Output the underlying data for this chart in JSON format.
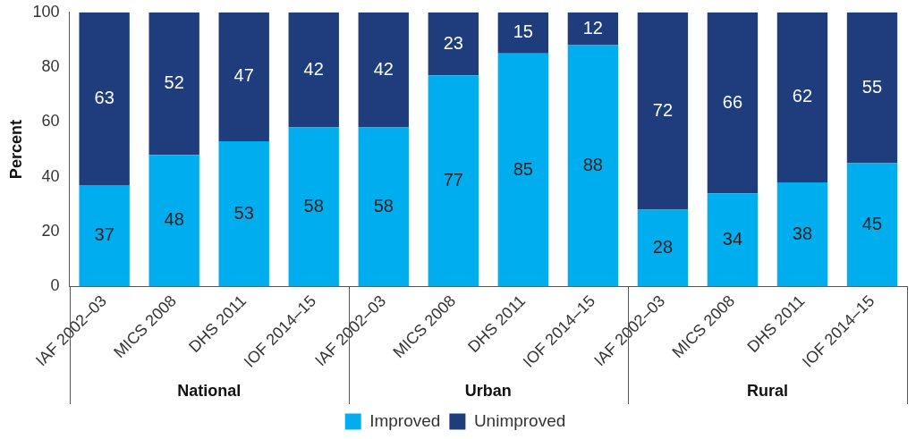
{
  "chart_data": {
    "type": "bar",
    "stacked": true,
    "ylabel": "Percent",
    "categories": [
      "IAF 2002–03",
      "MICS 2008",
      "DHS 2011",
      "IOF 2014–15",
      "IAF 2002–03",
      "MICS 2008",
      "DHS 2011",
      "IOF 2014–15",
      "IAF 2002–03",
      "MICS 2008",
      "DHS 2011",
      "IOF 2014–15"
    ],
    "series": [
      {
        "name": "Improved",
        "color": "#00aeef",
        "values": [
          37,
          48,
          53,
          58,
          58,
          77,
          85,
          88,
          28,
          34,
          38,
          45
        ]
      },
      {
        "name": "Unimproved",
        "color": "#1f3d7c",
        "values": [
          63,
          52,
          47,
          42,
          42,
          23,
          15,
          12,
          72,
          66,
          62,
          55
        ]
      }
    ],
    "ylim": [
      0,
      100
    ],
    "yticks": [
      0,
      20,
      40,
      60,
      80,
      100
    ],
    "grid": false,
    "legend": "bottom",
    "data_labels": true,
    "annotations": [
      "National",
      "Urban",
      "Rural"
    ]
  }
}
